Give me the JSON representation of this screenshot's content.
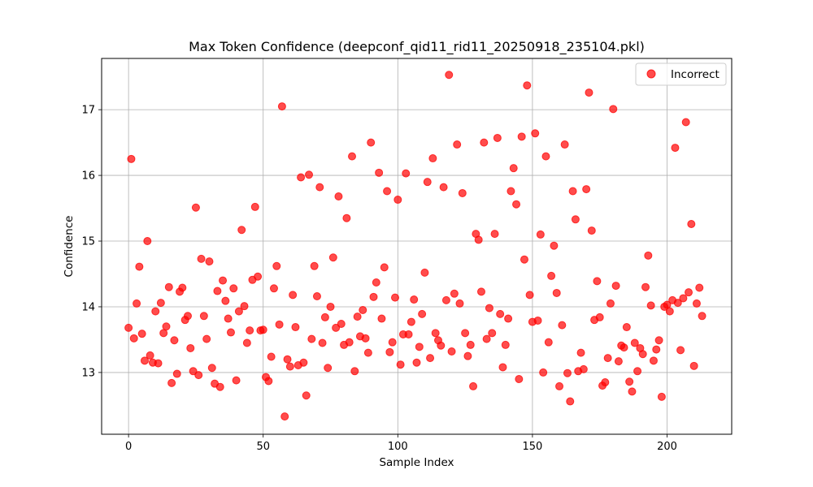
{
  "chart_data": {
    "type": "scatter",
    "title": "Max Token Confidence (deepconf_qid11_rid11_20250918_235104.pkl)",
    "xlabel": "Sample Index",
    "ylabel": "Confidence",
    "xlim": [
      -10,
      224
    ],
    "ylim": [
      12.06,
      17.78
    ],
    "xticks": [
      0,
      50,
      100,
      150,
      200
    ],
    "yticks": [
      13,
      14,
      15,
      16,
      17
    ],
    "grid": true,
    "legend_position": "top-right",
    "series": [
      {
        "name": "Incorrect",
        "color": "#ff0000",
        "x": [
          0,
          1,
          2,
          3,
          4,
          5,
          6,
          7,
          8,
          9,
          10,
          11,
          12,
          13,
          14,
          15,
          16,
          17,
          18,
          19,
          20,
          21,
          22,
          23,
          24,
          25,
          26,
          27,
          28,
          29,
          30,
          31,
          32,
          33,
          34,
          35,
          36,
          37,
          38,
          39,
          40,
          41,
          42,
          43,
          44,
          45,
          46,
          47,
          48,
          49,
          50,
          51,
          52,
          53,
          54,
          55,
          56,
          57,
          58,
          59,
          60,
          61,
          62,
          63,
          64,
          65,
          66,
          67,
          68,
          69,
          70,
          71,
          72,
          73,
          74,
          75,
          76,
          77,
          78,
          79,
          80,
          81,
          82,
          83,
          84,
          85,
          86,
          87,
          88,
          89,
          90,
          91,
          92,
          93,
          94,
          95,
          96,
          97,
          98,
          99,
          100,
          101,
          102,
          103,
          104,
          105,
          106,
          107,
          108,
          109,
          110,
          111,
          112,
          113,
          114,
          115,
          116,
          117,
          118,
          119,
          120,
          121,
          122,
          123,
          124,
          125,
          126,
          127,
          128,
          129,
          130,
          131,
          132,
          133,
          134,
          135,
          136,
          137,
          138,
          139,
          140,
          141,
          142,
          143,
          144,
          145,
          146,
          147,
          148,
          149,
          150,
          151,
          152,
          153,
          154,
          155,
          156,
          157,
          158,
          159,
          160,
          161,
          162,
          163,
          164,
          165,
          166,
          167,
          168,
          169,
          170,
          171,
          172,
          173,
          174,
          175,
          176,
          177,
          178,
          179,
          180,
          181,
          182,
          183,
          184,
          185,
          186,
          187,
          188,
          189,
          190,
          191,
          192,
          193,
          194,
          195,
          196,
          197,
          198,
          199,
          200,
          201,
          202,
          203,
          204,
          205,
          206,
          207,
          208,
          209,
          210,
          211,
          212,
          213
        ],
        "y": [
          13.68,
          16.25,
          13.52,
          14.05,
          14.61,
          13.59,
          13.18,
          15.0,
          13.26,
          13.15,
          13.93,
          13.14,
          14.06,
          13.6,
          13.7,
          14.3,
          12.84,
          13.49,
          12.98,
          14.23,
          14.29,
          13.8,
          13.86,
          13.37,
          13.02,
          15.51,
          12.96,
          14.73,
          13.86,
          13.51,
          14.69,
          13.07,
          12.83,
          14.24,
          12.78,
          14.4,
          14.09,
          13.82,
          13.61,
          14.28,
          12.88,
          13.93,
          15.17,
          14.01,
          13.45,
          13.64,
          14.41,
          15.52,
          14.46,
          13.64,
          13.65,
          12.93,
          12.87,
          13.24,
          14.28,
          14.62,
          13.73,
          17.05,
          12.33,
          13.2,
          13.09,
          14.18,
          13.69,
          13.11,
          15.97,
          13.15,
          12.65,
          16.01,
          13.51,
          14.62,
          14.16,
          15.82,
          13.45,
          13.84,
          13.07,
          14.0,
          14.75,
          13.68,
          15.68,
          13.74,
          13.42,
          15.35,
          13.46,
          16.29,
          13.02,
          13.85,
          13.55,
          13.95,
          13.52,
          13.3,
          16.5,
          14.15,
          14.37,
          16.04,
          13.82,
          14.6,
          15.76,
          13.31,
          13.46,
          14.14,
          15.63,
          13.12,
          13.58,
          16.03,
          13.58,
          13.77,
          14.11,
          13.15,
          13.39,
          13.89,
          14.52,
          15.9,
          13.22,
          16.26,
          13.6,
          13.49,
          13.41,
          15.82,
          14.1,
          17.53,
          13.32,
          14.2,
          16.47,
          14.05,
          15.73,
          13.6,
          13.25,
          13.42,
          12.79,
          15.11,
          15.02,
          14.23,
          16.5,
          13.51,
          13.98,
          13.6,
          15.11,
          16.57,
          13.89,
          13.08,
          13.42,
          13.82,
          15.76,
          16.11,
          15.56,
          12.9,
          16.59,
          14.72,
          17.37,
          14.18,
          13.77,
          16.64,
          13.79,
          15.1,
          13.0,
          16.29,
          13.46,
          14.47,
          14.93,
          14.21,
          12.79,
          13.72,
          16.47,
          12.99,
          12.56,
          15.76,
          15.33,
          13.02,
          13.3,
          13.05,
          15.79,
          17.26,
          15.16,
          13.8,
          14.39,
          13.84,
          12.8,
          12.85,
          13.22,
          14.05,
          17.01,
          14.32,
          13.17,
          13.41,
          13.38,
          13.69,
          12.86,
          12.71,
          13.45,
          13.02,
          13.37,
          13.28,
          14.3,
          14.78,
          14.02,
          13.18,
          13.35,
          13.49,
          12.63,
          14.0,
          14.03,
          13.93,
          14.1,
          16.42,
          14.06,
          13.34,
          14.13,
          16.81,
          14.22,
          15.26,
          13.1,
          14.05,
          14.29,
          13.86
        ]
      }
    ]
  }
}
